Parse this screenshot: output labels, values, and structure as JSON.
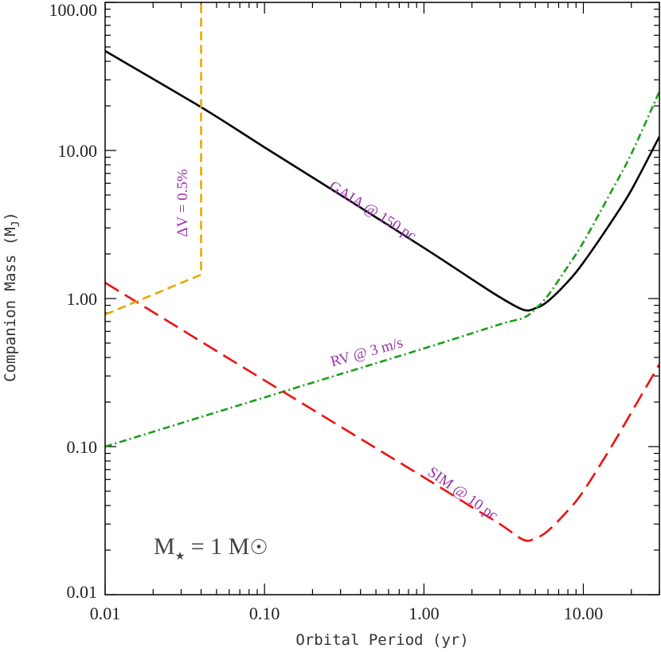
{
  "chart_data": {
    "type": "line",
    "title": "",
    "xlabel": "Orbital Period (yr)",
    "ylabel": "Companion Mass (M_J)",
    "ylabel_main": "Companion Mass (M",
    "ylabel_sub": "J",
    "ylabel_close": ")",
    "xscale": "log",
    "yscale": "log",
    "xlim": [
      0.01,
      30
    ],
    "ylim": [
      0.01,
      100
    ],
    "xticks": [
      0.01,
      0.1,
      1,
      10
    ],
    "xtick_labels": [
      "0.01",
      "0.10",
      "1.00",
      "10.00"
    ],
    "yticks": [
      0.01,
      0.1,
      1,
      10,
      100
    ],
    "ytick_labels": [
      "0.01",
      "0.10",
      "1.00",
      "10.00",
      "100.00"
    ],
    "grid": false,
    "series": [
      {
        "label": "GAIA @ 150 pc",
        "color": "#000000",
        "style": "solid",
        "x": [
          0.01,
          0.04,
          0.1,
          0.3,
          1,
          2,
          3,
          4.2,
          5,
          6,
          8,
          10,
          15,
          20,
          30
        ],
        "y": [
          47,
          19.6,
          10.5,
          5.0,
          2.2,
          1.35,
          1.02,
          0.84,
          0.86,
          0.96,
          1.3,
          1.75,
          3.3,
          5.4,
          12.4
        ]
      },
      {
        "label": "RV @ 3 m/s",
        "color": "#1a9e1a",
        "style": "dashdot",
        "x": [
          0.01,
          0.1,
          1,
          3,
          4.2,
          5,
          6,
          8,
          10,
          15,
          20,
          30
        ],
        "y": [
          0.1,
          0.215,
          0.46,
          0.67,
          0.74,
          0.85,
          1.05,
          1.65,
          2.4,
          5.3,
          9.5,
          25
        ]
      },
      {
        "label": "SIM @ 10 pc",
        "color": "#ee1111",
        "style": "longdash",
        "x": [
          0.01,
          0.1,
          1,
          2,
          3,
          4.2,
          5,
          6,
          8,
          10,
          15,
          20,
          30
        ],
        "y": [
          1.28,
          0.28,
          0.062,
          0.039,
          0.03,
          0.0235,
          0.024,
          0.027,
          0.037,
          0.05,
          0.1,
          0.17,
          0.36
        ]
      },
      {
        "label": "ΔV = 0.5%",
        "color": "#e8a800",
        "style": "dashed",
        "x": [
          0.01,
          0.04,
          0.04
        ],
        "y": [
          0.78,
          1.45,
          100
        ]
      }
    ],
    "annotations": [
      {
        "text": "M",
        "sub": "★",
        "rest": " = 1 M",
        "sun": "☉"
      }
    ]
  }
}
